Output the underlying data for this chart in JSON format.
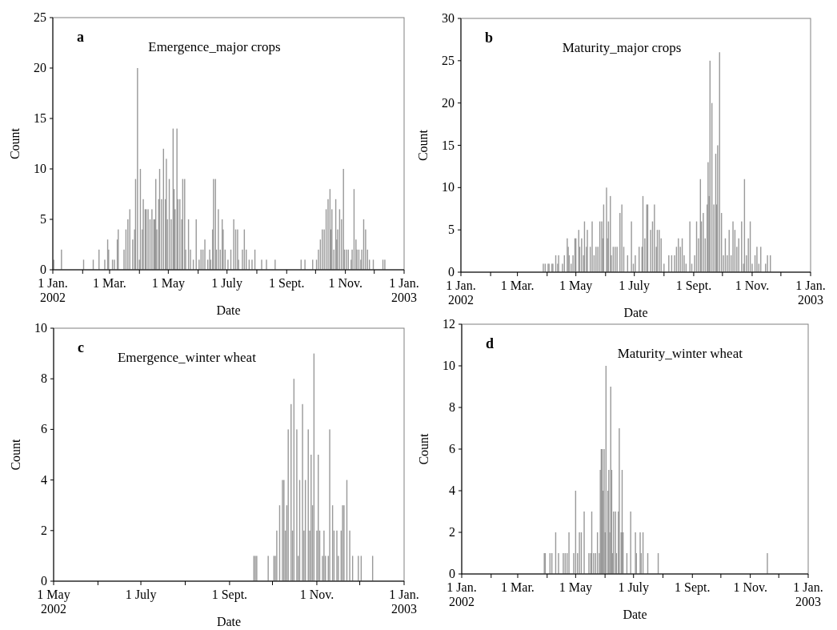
{
  "chart_data": [
    {
      "type": "bar",
      "title": "Emergence_major crops",
      "annotations": [
        "a"
      ],
      "xlabel": "Date",
      "ylabel": "Count",
      "color": "#999999",
      "x": [
        "2002-01-02",
        "2002-01-10",
        "2002-02-02",
        "2002-02-12",
        "2002-02-18",
        "2002-02-24",
        "2002-02-27",
        "2002-02-28",
        "2002-03-04",
        "2002-03-06",
        "2002-03-09",
        "2002-03-10",
        "2002-03-16",
        "2002-03-18",
        "2002-03-20",
        "2002-03-22",
        "2002-03-25",
        "2002-03-27",
        "2002-03-28",
        "2002-03-30",
        "2002-04-01",
        "2002-04-02",
        "2002-04-04",
        "2002-04-05",
        "2002-04-07",
        "2002-04-08",
        "2002-04-10",
        "2002-04-12",
        "2002-04-14",
        "2002-04-16",
        "2002-04-17",
        "2002-04-18",
        "2002-04-19",
        "2002-04-21",
        "2002-04-22",
        "2002-04-24",
        "2002-04-26",
        "2002-04-28",
        "2002-04-29",
        "2002-04-30",
        "2002-05-02",
        "2002-05-04",
        "2002-05-06",
        "2002-05-07",
        "2002-05-08",
        "2002-05-10",
        "2002-05-11",
        "2002-05-13",
        "2002-05-15",
        "2002-05-16",
        "2002-05-18",
        "2002-05-19",
        "2002-05-22",
        "2002-05-24",
        "2002-05-27",
        "2002-05-30",
        "2002-06-02",
        "2002-06-04",
        "2002-06-06",
        "2002-06-08",
        "2002-06-11",
        "2002-06-13",
        "2002-06-14",
        "2002-06-16",
        "2002-06-17",
        "2002-06-19",
        "2002-06-20",
        "2002-06-22",
        "2002-06-24",
        "2002-06-26",
        "2002-06-27",
        "2002-06-29",
        "2002-07-02",
        "2002-07-05",
        "2002-07-08",
        "2002-07-10",
        "2002-07-12",
        "2002-07-13",
        "2002-07-17",
        "2002-07-19",
        "2002-07-21",
        "2002-07-24",
        "2002-07-27",
        "2002-07-30",
        "2002-08-06",
        "2002-08-11",
        "2002-08-20",
        "2002-09-16",
        "2002-09-20",
        "2002-09-28",
        "2002-10-02",
        "2002-10-04",
        "2002-10-06",
        "2002-10-08",
        "2002-10-10",
        "2002-10-12",
        "2002-10-14",
        "2002-10-16",
        "2002-10-17",
        "2002-10-18",
        "2002-10-20",
        "2002-10-22",
        "2002-10-23",
        "2002-10-24",
        "2002-10-26",
        "2002-10-28",
        "2002-10-30",
        "2002-10-31",
        "2002-11-02",
        "2002-11-04",
        "2002-11-07",
        "2002-11-08",
        "2002-11-10",
        "2002-11-12",
        "2002-11-13",
        "2002-11-15",
        "2002-11-17",
        "2002-11-18",
        "2002-11-20",
        "2002-11-22",
        "2002-11-24",
        "2002-11-26",
        "2002-11-30",
        "2002-12-10",
        "2002-12-12"
      ],
      "values": [
        1,
        2,
        1,
        1,
        2,
        1,
        3,
        2,
        1,
        1,
        3,
        4,
        2,
        4,
        5,
        6,
        3,
        4,
        9,
        20,
        1,
        10,
        4,
        7,
        6,
        6,
        6,
        5,
        6,
        5,
        5,
        9,
        4,
        7,
        10,
        7,
        12,
        7,
        11,
        5,
        9,
        5,
        14,
        8,
        6,
        14,
        7,
        7,
        5,
        9,
        9,
        2,
        5,
        2,
        1,
        5,
        1,
        2,
        2,
        3,
        1,
        2,
        1,
        4,
        9,
        9,
        2,
        6,
        2,
        5,
        4,
        2,
        1,
        2,
        5,
        4,
        4,
        1,
        2,
        4,
        2,
        1,
        1,
        2,
        1,
        1,
        1,
        1,
        1,
        1,
        1,
        2,
        3,
        4,
        4,
        6,
        7,
        8,
        4,
        6,
        2,
        7,
        3,
        4,
        6,
        5,
        10,
        2,
        2,
        2,
        1,
        2,
        8,
        3,
        2,
        2,
        1,
        2,
        5,
        4,
        2,
        1,
        1,
        1,
        1
      ],
      "xlim": [
        "2002-01-01",
        "2003-01-01"
      ],
      "xticks": [
        {
          "value": "2002-01-01",
          "label": "1 Jan.\n2002"
        },
        {
          "value": "2002-02-01",
          "label": null
        },
        {
          "value": "2002-03-01",
          "label": "1 Mar."
        },
        {
          "value": "2002-04-01",
          "label": null
        },
        {
          "value": "2002-05-01",
          "label": "1 May"
        },
        {
          "value": "2002-06-01",
          "label": null
        },
        {
          "value": "2002-07-01",
          "label": "1 July"
        },
        {
          "value": "2002-08-01",
          "label": null
        },
        {
          "value": "2002-09-01",
          "label": "1 Sept."
        },
        {
          "value": "2002-10-01",
          "label": null
        },
        {
          "value": "2002-11-01",
          "label": "1 Nov."
        },
        {
          "value": "2002-12-01",
          "label": null
        },
        {
          "value": "2003-01-01",
          "label": "1 Jan.\n2003"
        }
      ],
      "ylim": [
        0,
        25
      ],
      "yticks": [
        0,
        5,
        10,
        15,
        20,
        25
      ]
    },
    {
      "type": "bar",
      "title": "Maturity_major crops",
      "annotations": [
        "b"
      ],
      "xlabel": "Date",
      "ylabel": "Count",
      "color": "#999999",
      "x": [
        "2002-03-28",
        "2002-03-30",
        "2002-04-02",
        "2002-04-03",
        "2002-04-06",
        "2002-04-07",
        "2002-04-10",
        "2002-04-12",
        "2002-04-13",
        "2002-04-17",
        "2002-04-19",
        "2002-04-22",
        "2002-04-23",
        "2002-04-24",
        "2002-04-26",
        "2002-04-28",
        "2002-04-30",
        "2002-05-01",
        "2002-05-04",
        "2002-05-05",
        "2002-05-07",
        "2002-05-09",
        "2002-05-10",
        "2002-05-12",
        "2002-05-13",
        "2002-05-16",
        "2002-05-18",
        "2002-05-20",
        "2002-05-22",
        "2002-05-24",
        "2002-05-26",
        "2002-05-28",
        "2002-05-29",
        "2002-05-30",
        "2002-06-02",
        "2002-06-03",
        "2002-06-04",
        "2002-06-06",
        "2002-06-07",
        "2002-06-09",
        "2002-06-11",
        "2002-06-13",
        "2002-06-16",
        "2002-06-18",
        "2002-06-20",
        "2002-06-24",
        "2002-06-28",
        "2002-06-30",
        "2002-07-02",
        "2002-07-06",
        "2002-07-09",
        "2002-07-10",
        "2002-07-12",
        "2002-07-14",
        "2002-07-15",
        "2002-07-18",
        "2002-07-20",
        "2002-07-22",
        "2002-07-24",
        "2002-07-25",
        "2002-07-27",
        "2002-07-29",
        "2002-08-01",
        "2002-08-06",
        "2002-08-09",
        "2002-08-12",
        "2002-08-14",
        "2002-08-16",
        "2002-08-18",
        "2002-08-20",
        "2002-08-22",
        "2002-08-24",
        "2002-08-28",
        "2002-08-30",
        "2002-09-02",
        "2002-09-04",
        "2002-09-06",
        "2002-09-08",
        "2002-09-09",
        "2002-09-11",
        "2002-09-13",
        "2002-09-15",
        "2002-09-16",
        "2002-09-17",
        "2002-09-18",
        "2002-09-20",
        "2002-09-22",
        "2002-09-24",
        "2002-09-25",
        "2002-09-26",
        "2002-09-28",
        "2002-09-30",
        "2002-10-02",
        "2002-10-04",
        "2002-10-06",
        "2002-10-08",
        "2002-10-10",
        "2002-10-12",
        "2002-10-14",
        "2002-10-16",
        "2002-10-18",
        "2002-10-21",
        "2002-10-23",
        "2002-10-24",
        "2002-10-26",
        "2002-10-28",
        "2002-10-30",
        "2002-11-01",
        "2002-11-04",
        "2002-11-06",
        "2002-11-08",
        "2002-11-10",
        "2002-11-15",
        "2002-11-17",
        "2002-11-20"
      ],
      "values": [
        1,
        1,
        1,
        1,
        1,
        1,
        2,
        1,
        2,
        1,
        2,
        4,
        3,
        2,
        1,
        2,
        4,
        4,
        5,
        3,
        4,
        2,
        6,
        3,
        5,
        3,
        6,
        2,
        3,
        3,
        6,
        6,
        4,
        8,
        10,
        4,
        6,
        9,
        2,
        3,
        3,
        3,
        7,
        8,
        3,
        2,
        6,
        1,
        2,
        3,
        3,
        9,
        4,
        8,
        8,
        5,
        6,
        8,
        3,
        5,
        5,
        4,
        1,
        2,
        2,
        2,
        3,
        4,
        3,
        4,
        2,
        1,
        6,
        1,
        2,
        6,
        4,
        11,
        6,
        7,
        4,
        8,
        13,
        9,
        25,
        20,
        8,
        14,
        8,
        15,
        26,
        7,
        2,
        4,
        2,
        5,
        2,
        6,
        5,
        3,
        4,
        6,
        1,
        11,
        2,
        4,
        6,
        1,
        2,
        3,
        1,
        3,
        1,
        2,
        2
      ],
      "xlim": [
        "2002-01-01",
        "2003-01-01"
      ],
      "xticks": [
        {
          "value": "2002-01-01",
          "label": "1 Jan.\n2002"
        },
        {
          "value": "2002-02-01",
          "label": null
        },
        {
          "value": "2002-03-01",
          "label": "1 Mar."
        },
        {
          "value": "2002-04-01",
          "label": null
        },
        {
          "value": "2002-05-01",
          "label": "1 May"
        },
        {
          "value": "2002-06-01",
          "label": null
        },
        {
          "value": "2002-07-01",
          "label": "1 July"
        },
        {
          "value": "2002-08-01",
          "label": null
        },
        {
          "value": "2002-09-01",
          "label": "1 Sept."
        },
        {
          "value": "2002-10-01",
          "label": null
        },
        {
          "value": "2002-11-01",
          "label": "1 Nov."
        },
        {
          "value": "2002-12-01",
          "label": null
        },
        {
          "value": "2003-01-01",
          "label": "1 Jan.\n2003"
        }
      ],
      "ylim": [
        0,
        30
      ],
      "yticks": [
        0,
        5,
        10,
        15,
        20,
        25,
        30
      ]
    },
    {
      "type": "bar",
      "title": "Emergence_winter wheat",
      "annotations": [
        "c"
      ],
      "xlabel": "Date",
      "ylabel": "Count",
      "color": "#999999",
      "x": [
        "2002-09-18",
        "2002-09-19",
        "2002-09-20",
        "2002-09-28",
        "2002-10-02",
        "2002-10-03",
        "2002-10-04",
        "2002-10-06",
        "2002-10-08",
        "2002-10-09",
        "2002-10-10",
        "2002-10-11",
        "2002-10-12",
        "2002-10-14",
        "2002-10-15",
        "2002-10-16",
        "2002-10-18",
        "2002-10-19",
        "2002-10-20",
        "2002-10-22",
        "2002-10-23",
        "2002-10-24",
        "2002-10-26",
        "2002-10-27",
        "2002-10-28",
        "2002-10-29",
        "2002-10-30",
        "2002-11-01",
        "2002-11-02",
        "2002-11-03",
        "2002-11-05",
        "2002-11-06",
        "2002-11-07",
        "2002-11-09",
        "2002-11-10",
        "2002-11-12",
        "2002-11-13",
        "2002-11-15",
        "2002-11-16",
        "2002-11-18",
        "2002-11-19",
        "2002-11-20",
        "2002-11-22",
        "2002-11-24",
        "2002-11-26",
        "2002-11-30",
        "2002-12-02",
        "2002-12-10"
      ],
      "values": [
        1,
        1,
        1,
        1,
        1,
        1,
        2,
        3,
        4,
        4,
        2,
        3,
        6,
        7,
        2,
        8,
        6,
        1,
        4,
        7,
        2,
        4,
        6,
        2,
        5,
        3,
        9,
        2,
        5,
        2,
        1,
        2,
        1,
        1,
        6,
        3,
        2,
        2,
        1,
        2,
        3,
        3,
        4,
        2,
        1,
        1,
        1,
        1
      ],
      "xlim": [
        "2002-05-01",
        "2003-01-01"
      ],
      "xticks": [
        {
          "value": "2002-05-01",
          "label": "1 May\n2002"
        },
        {
          "value": "2002-06-01",
          "label": null
        },
        {
          "value": "2002-07-01",
          "label": "1 July"
        },
        {
          "value": "2002-08-01",
          "label": null
        },
        {
          "value": "2002-09-01",
          "label": "1 Sept."
        },
        {
          "value": "2002-10-01",
          "label": null
        },
        {
          "value": "2002-11-01",
          "label": "1 Nov."
        },
        {
          "value": "2002-12-01",
          "label": null
        },
        {
          "value": "2003-01-01",
          "label": "1 Jan.\n2003"
        }
      ],
      "ylim": [
        0,
        10
      ],
      "yticks": [
        0,
        2,
        4,
        6,
        8,
        10
      ]
    },
    {
      "type": "bar",
      "title": "Maturity_winter wheat",
      "annotations": [
        "d"
      ],
      "xlabel": "Date",
      "ylabel": "Count",
      "color": "#999999",
      "x": [
        "2002-03-29",
        "2002-03-30",
        "2002-04-04",
        "2002-04-06",
        "2002-04-10",
        "2002-04-13",
        "2002-04-18",
        "2002-04-20",
        "2002-04-22",
        "2002-04-24",
        "2002-04-29",
        "2002-05-01",
        "2002-05-03",
        "2002-05-05",
        "2002-05-07",
        "2002-05-10",
        "2002-05-15",
        "2002-05-17",
        "2002-05-18",
        "2002-05-20",
        "2002-05-22",
        "2002-05-24",
        "2002-05-26",
        "2002-05-27",
        "2002-05-28",
        "2002-05-29",
        "2002-05-30",
        "2002-05-31",
        "2002-06-01",
        "2002-06-02",
        "2002-06-04",
        "2002-06-05",
        "2002-06-06",
        "2002-06-07",
        "2002-06-08",
        "2002-06-09",
        "2002-06-10",
        "2002-06-12",
        "2002-06-13",
        "2002-06-15",
        "2002-06-16",
        "2002-06-18",
        "2002-06-19",
        "2002-06-20",
        "2002-06-24",
        "2002-06-28",
        "2002-07-03",
        "2002-07-04",
        "2002-07-08",
        "2002-07-09",
        "2002-07-11",
        "2002-07-16",
        "2002-07-27",
        "2002-11-19"
      ],
      "values": [
        1,
        1,
        1,
        1,
        2,
        1,
        1,
        1,
        1,
        2,
        1,
        4,
        1,
        2,
        2,
        3,
        1,
        1,
        3,
        1,
        1,
        2,
        1,
        5,
        6,
        6,
        4,
        6,
        2,
        10,
        4,
        5,
        2,
        9,
        5,
        1,
        3,
        3,
        1,
        3,
        7,
        2,
        5,
        2,
        1,
        3,
        2,
        1,
        2,
        1,
        2,
        1,
        1,
        1
      ],
      "xlim": [
        "2002-01-01",
        "2003-01-01"
      ],
      "xticks": [
        {
          "value": "2002-01-01",
          "label": "1 Jan.\n2002"
        },
        {
          "value": "2002-02-01",
          "label": null
        },
        {
          "value": "2002-03-01",
          "label": "1 Mar."
        },
        {
          "value": "2002-04-01",
          "label": null
        },
        {
          "value": "2002-05-01",
          "label": "1 May"
        },
        {
          "value": "2002-06-01",
          "label": null
        },
        {
          "value": "2002-07-01",
          "label": "1 July"
        },
        {
          "value": "2002-08-01",
          "label": null
        },
        {
          "value": "2002-09-01",
          "label": "1 Sept."
        },
        {
          "value": "2002-10-01",
          "label": null
        },
        {
          "value": "2002-11-01",
          "label": "1 Nov."
        },
        {
          "value": "2002-12-01",
          "label": null
        },
        {
          "value": "2003-01-01",
          "label": "1 Jan.\n2003"
        }
      ],
      "ylim": [
        0,
        12
      ],
      "yticks": [
        0,
        2,
        4,
        6,
        8,
        10,
        12
      ]
    }
  ]
}
